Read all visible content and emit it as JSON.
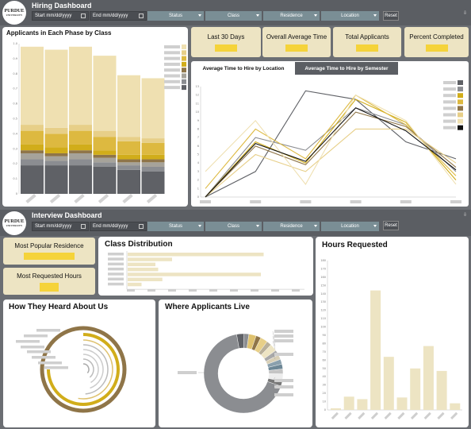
{
  "hiring": {
    "title": "Hiring Dashboard",
    "start_placeholder": "Start mm/dd/yyyy",
    "end_placeholder": "End mm/dd/yyyy",
    "filters": [
      "Status",
      "Class",
      "Residence",
      "Location"
    ],
    "reset_label": "Reset",
    "kpis": [
      "Last 30 Days",
      "Overall Average Time",
      "Total Applicants",
      "Percent Completed"
    ],
    "tabs": [
      "Average Time to Hire by Location",
      "Average Time to Hire by Semester"
    ]
  },
  "interview": {
    "title": "Interview Dashboard",
    "start_placeholder": "Start mm/dd/yyyy",
    "end_placeholder": "End mm/dd/yyyy",
    "filters": [
      "Status",
      "Class",
      "Residence",
      "Location"
    ],
    "reset_label": "Reset",
    "kpis": [
      "Most Popular Residence",
      "Most Requested Hours"
    ]
  },
  "logo": {
    "line1": "PURDUE",
    "line2": "UNIVERSITY"
  },
  "colors": {
    "gold": "#dfc26f",
    "light_gold": "#ede4c3",
    "accent": "#f5d33a",
    "dark": "#5b5e63"
  },
  "chart_data": [
    {
      "type": "bar",
      "title": "Applicants in Each Phase by Class",
      "stacked": true,
      "y_ticks": [
        "0",
        "0.1",
        "0.2",
        "0.3",
        "0.4",
        "0.5",
        "0.6",
        "0.7",
        "0.8",
        "0.9",
        "1.0"
      ],
      "ylim": [
        0,
        1
      ],
      "series": [
        {
          "color": "#5f6166",
          "values": [
            0.19,
            0.19,
            0.19,
            0.18,
            0.16,
            0.15
          ]
        },
        {
          "color": "#8b8d91",
          "values": [
            0.04,
            0.03,
            0.04,
            0.03,
            0.03,
            0.03
          ]
        },
        {
          "color": "#a6a39a",
          "values": [
            0.04,
            0.03,
            0.04,
            0.03,
            0.02,
            0.03
          ]
        },
        {
          "color": "#8f7548",
          "values": [
            0.02,
            0.02,
            0.02,
            0.02,
            0.02,
            0.02
          ]
        },
        {
          "color": "#d1ad1a",
          "values": [
            0.04,
            0.04,
            0.04,
            0.03,
            0.03,
            0.03
          ]
        },
        {
          "color": "#ddb940",
          "values": [
            0.09,
            0.09,
            0.09,
            0.09,
            0.09,
            0.08
          ]
        },
        {
          "color": "#e7cf88",
          "values": [
            0.04,
            0.04,
            0.04,
            0.04,
            0.03,
            0.03
          ]
        },
        {
          "color": "#efe0b1",
          "values": [
            0.52,
            0.52,
            0.52,
            0.5,
            0.41,
            0.4
          ]
        }
      ],
      "legend": "right"
    },
    {
      "type": "line",
      "title": "Average Time to Hire by Location",
      "y_ticks": [
        "0",
        "1",
        "2",
        "3",
        "4",
        "5",
        "6",
        "7",
        "8",
        "9",
        "10",
        "11",
        "12",
        "13"
      ],
      "ylim": [
        0,
        13
      ],
      "x_count": 6,
      "series": [
        {
          "color": "#5f6166",
          "values": [
            0,
            3,
            12.5,
            11.5,
            6.5,
            4.5
          ]
        },
        {
          "color": "#8b8d91",
          "values": [
            0,
            7,
            5.5,
            10.5,
            8.5,
            3
          ]
        },
        {
          "color": "#d1ad1a",
          "values": [
            0,
            6.5,
            4,
            11.5,
            8.8,
            2
          ]
        },
        {
          "color": "#ddb940",
          "values": [
            1,
            8,
            4.5,
            12,
            8.5,
            2.5
          ]
        },
        {
          "color": "#8f7548",
          "values": [
            0,
            6,
            3.8,
            10,
            8.3,
            3.5
          ]
        },
        {
          "color": "#e7cf88",
          "values": [
            0,
            5,
            3,
            8,
            8,
            4
          ]
        },
        {
          "color": "#efe0b1",
          "values": [
            3,
            9,
            1.5,
            12,
            9,
            1.5
          ]
        },
        {
          "color": "#111111",
          "values": [
            0,
            6.3,
            4.2,
            10.5,
            7.8,
            3.2
          ]
        }
      ],
      "legend": "right"
    },
    {
      "type": "bar",
      "orientation": "horizontal",
      "title": "Class Distribution",
      "values": [
        0.98,
        0.32,
        0.2,
        0.22,
        0.96,
        0.25,
        0.1
      ],
      "xlim": [
        0,
        1.2
      ],
      "color": "#ede4c3"
    },
    {
      "type": "bar",
      "title": "Hours Requested",
      "y_ticks": [
        "0",
        "10",
        "20",
        "30",
        "40",
        "50",
        "60",
        "70",
        "80",
        "90",
        "100",
        "110",
        "120",
        "130",
        "140",
        "150",
        "160",
        "170",
        "180"
      ],
      "ylim": [
        0,
        180
      ],
      "values": [
        2,
        16,
        13,
        144,
        64,
        15,
        50,
        77,
        47,
        8
      ],
      "color": "#ede4c3"
    },
    {
      "type": "pie",
      "title": "How They Heard About Us",
      "style": "radial-rings"
    },
    {
      "type": "pie",
      "title": "Where Applicants Live",
      "style": "donut"
    }
  ]
}
